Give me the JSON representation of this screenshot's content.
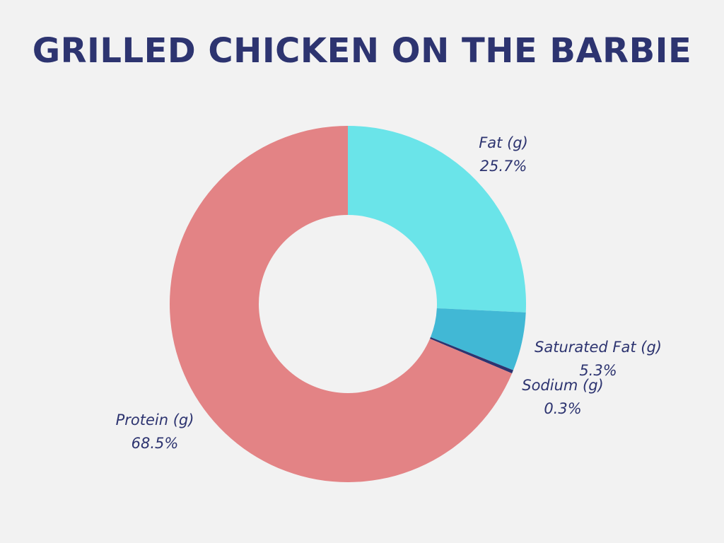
{
  "chart_data": {
    "type": "pie",
    "title": "GRILLED CHICKEN ON THE BARBIE",
    "donut": true,
    "start_angle_deg": 0,
    "direction": "clockwise",
    "slices": [
      {
        "name": "Fat (g)",
        "value": 25.7,
        "value_label": "25.7%",
        "color": "#6ae4e9"
      },
      {
        "name": "Saturated Fat (g)",
        "value": 5.3,
        "value_label": "5.3%",
        "color": "#41b8d5"
      },
      {
        "name": "Sodium (g)",
        "value": 0.3,
        "value_label": "0.3%",
        "color": "#2d3470"
      },
      {
        "name": "Protein (g)",
        "value": 68.5,
        "value_label": "68.5%",
        "color": "#e38385"
      }
    ]
  }
}
